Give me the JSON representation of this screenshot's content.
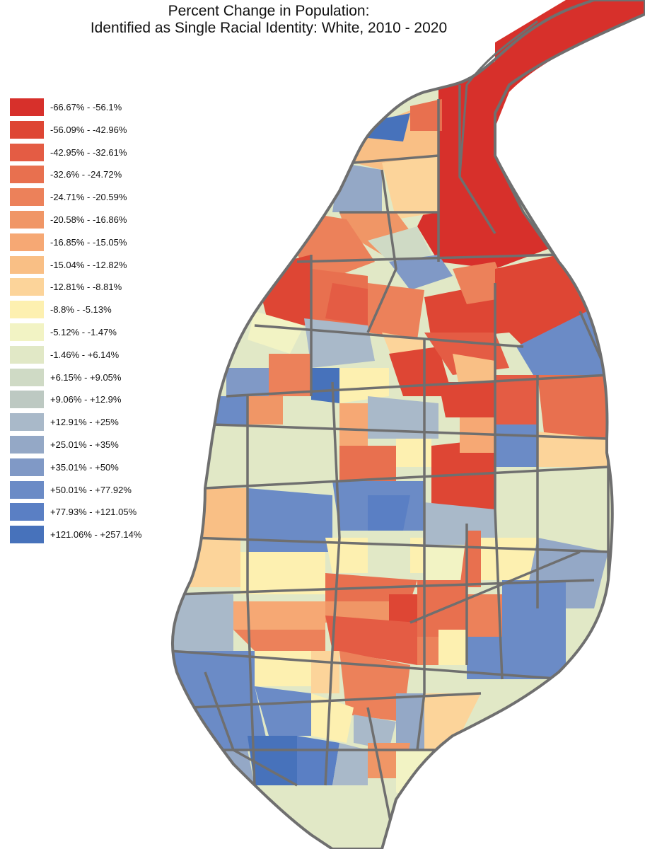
{
  "title": {
    "line1": "Percent Change in Population:",
    "line2": "Identified as Single Racial Identity: White, 2010 - 2020"
  },
  "legend": [
    {
      "label": "-66.67% - -56.1%",
      "color": "#d7302b"
    },
    {
      "label": "-56.09% - -42.96%",
      "color": "#de4634"
    },
    {
      "label": "-42.95% - -32.61%",
      "color": "#e45c44"
    },
    {
      "label": "-32.6% - -24.72%",
      "color": "#e8704f"
    },
    {
      "label": "-24.71% - -20.59%",
      "color": "#ec815a"
    },
    {
      "label": "-20.58% - -16.86%",
      "color": "#f09666"
    },
    {
      "label": "-16.85% - -15.05%",
      "color": "#f6a874"
    },
    {
      "label": "-15.04% - -12.82%",
      "color": "#f9bf85"
    },
    {
      "label": "-12.81% - -8.81%",
      "color": "#fcd49a"
    },
    {
      "label": "-8.8% - -5.13%",
      "color": "#fdf0b0"
    },
    {
      "label": "-5.12% - -1.47%",
      "color": "#f2f3c4"
    },
    {
      "label": "-1.46% - +6.14%",
      "color": "#e1e8c6"
    },
    {
      "label": "+6.15% - +9.05%",
      "color": "#cfdac5"
    },
    {
      "label": "+9.06% - +12.9%",
      "color": "#bdc9c2"
    },
    {
      "label": "+12.91% - +25%",
      "color": "#a9b9c9"
    },
    {
      "label": "+25.01% - +35%",
      "color": "#94a8c6"
    },
    {
      "label": "+35.01% - +50%",
      "color": "#8099c6"
    },
    {
      "label": "+50.01% - +77.92%",
      "color": "#6b8bc6"
    },
    {
      "label": "+77.93% - +121.05%",
      "color": "#5a7fc4"
    },
    {
      "label": "+121.06% - +257.14%",
      "color": "#4772bb"
    }
  ],
  "boundary_color": "#6f6f6f"
}
